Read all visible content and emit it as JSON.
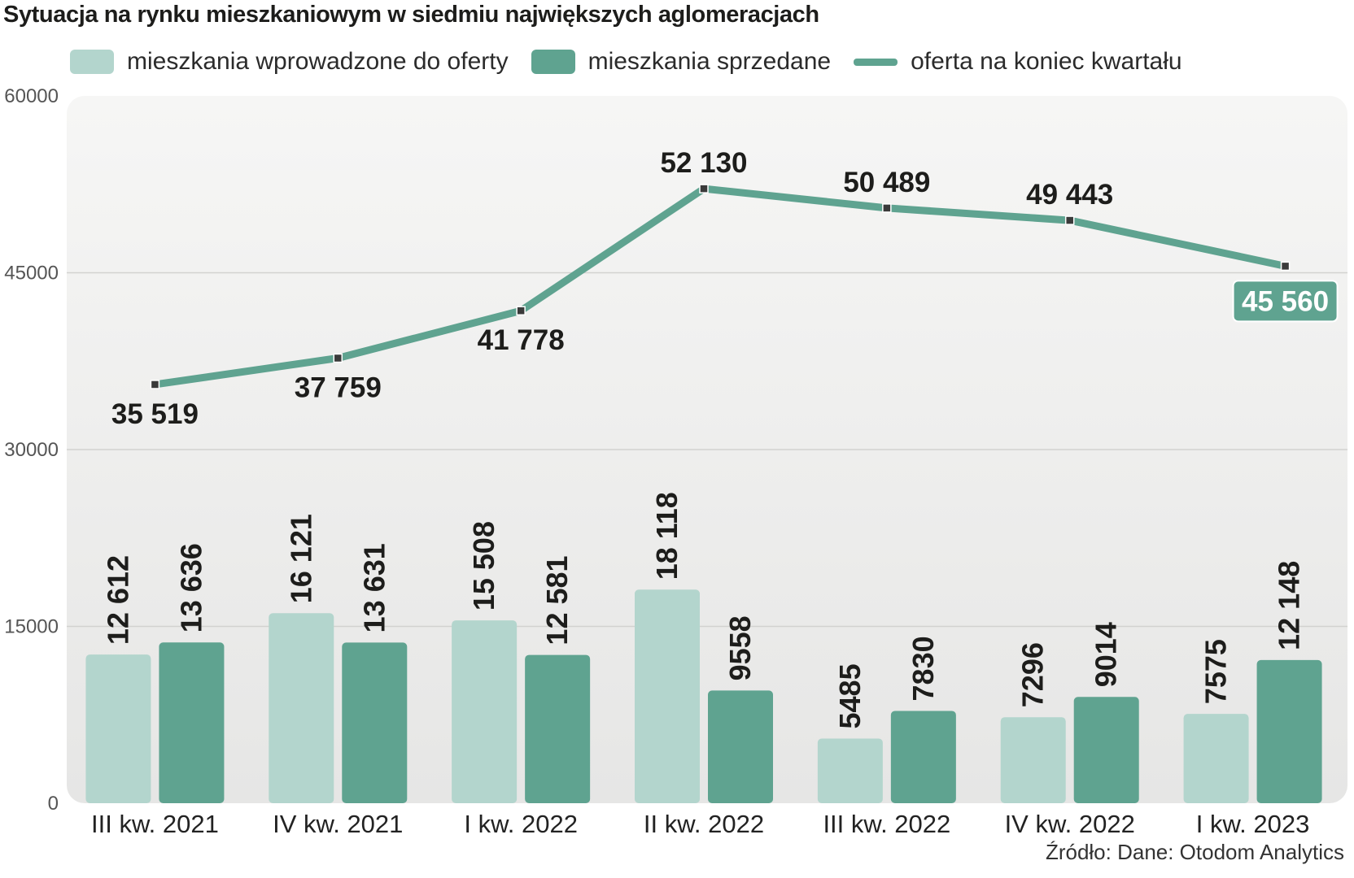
{
  "chart_data": {
    "type": "bar+line",
    "title": "Sytuacja na rynku mieszkaniowym w siedmiu największych aglomeracjach",
    "categories": [
      "III kw. 2021",
      "IV kw. 2021",
      "I kw. 2022",
      "II kw. 2022",
      "III kw. 2022",
      "IV kw. 2022",
      "I kw. 2023"
    ],
    "series": [
      {
        "name": "mieszkania wprowadzone do oferty",
        "kind": "bar",
        "color": "#b3d5cd",
        "values": [
          12612,
          16121,
          15508,
          18118,
          5485,
          7296,
          7575
        ],
        "labels": [
          "12 612",
          "16 121",
          "15 508",
          "18 118",
          "5485",
          "7296",
          "7575"
        ]
      },
      {
        "name": "mieszkania sprzedane",
        "kind": "bar",
        "color": "#5fa390",
        "values": [
          13636,
          13631,
          12581,
          9558,
          7830,
          9014,
          12148
        ],
        "labels": [
          "13 636",
          "13 631",
          "12 581",
          "9558",
          "7830",
          "9014",
          "12 148"
        ]
      },
      {
        "name": "oferta na koniec kwartału",
        "kind": "line",
        "color": "#5fa390",
        "values": [
          35519,
          37759,
          41778,
          52130,
          50489,
          49443,
          45560
        ],
        "labels": [
          "35 519",
          "37 759",
          "41 778",
          "52 130",
          "50 489",
          "49 443",
          "45 560"
        ]
      }
    ],
    "ylim": [
      0,
      60000
    ],
    "yticks": [
      0,
      15000,
      30000,
      45000,
      60000
    ],
    "ytick_labels": [
      "0",
      "15000",
      "30000",
      "45000",
      "60000"
    ],
    "legend": "top-left",
    "grid": true
  },
  "source": "Źródło: Dane: Otodom Analytics",
  "colors": {
    "light": "#b3d5cd",
    "dark": "#5fa390",
    "text": "#1d1d1b"
  }
}
